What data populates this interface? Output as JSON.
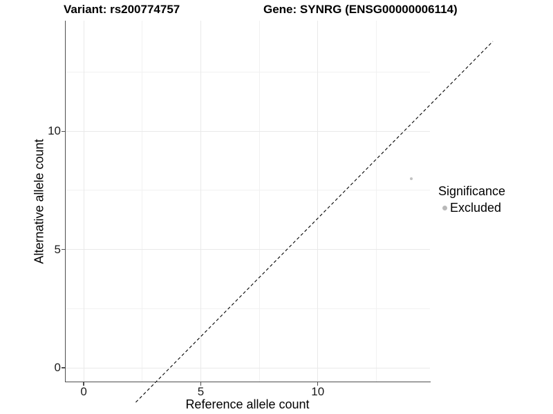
{
  "titles": {
    "variant": "Variant: rs200774757",
    "gene": "Gene: SYNRG (ENSG00000006114)"
  },
  "axes": {
    "x_label": "Reference allele count",
    "y_label": "Alternative allele count"
  },
  "legend": {
    "title": "Significance",
    "items": [
      {
        "label": "Excluded",
        "color": "#b9b9b9",
        "key_size": 7
      }
    ]
  },
  "chart_data": {
    "type": "scatter",
    "title": "Variant: rs200774757 / Gene: SYNRG (ENSG00000006114)",
    "xlabel": "Reference allele count",
    "ylabel": "Alternative allele count",
    "xlim": [
      -0.77,
      14.79
    ],
    "ylim": [
      -0.58,
      14.67
    ],
    "x_ticks": {
      "values": [
        0,
        5,
        10
      ],
      "labels": [
        "0",
        "5",
        "10"
      ]
    },
    "y_ticks": {
      "values": [
        0,
        5,
        10
      ],
      "labels": [
        "0",
        "5",
        "10"
      ]
    },
    "x_minor": [
      2.5,
      7.5,
      12.5
    ],
    "y_minor": [
      2.5,
      7.5,
      12.5
    ],
    "grid": true,
    "legend_position": "right",
    "reference_line": {
      "slope": 1,
      "intercept": 0,
      "style": "dashed",
      "color": "#000000"
    },
    "series": [
      {
        "name": "Excluded",
        "color": "#c2c2c2",
        "point_radius": 2.2,
        "points": [
          {
            "x": 14,
            "y": 8
          }
        ]
      }
    ]
  }
}
